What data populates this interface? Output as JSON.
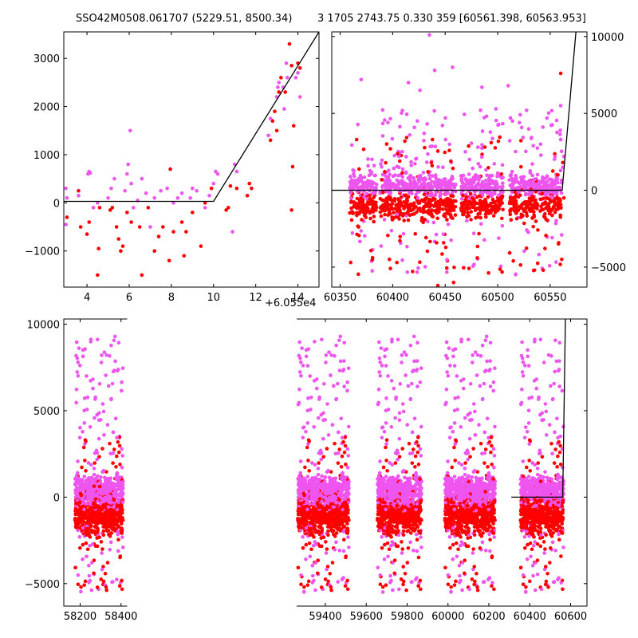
{
  "title_left": "SSO42M0508.061707 (5229.51, 8500.34)",
  "title_right": "3 1705 2743.75 0.330 359 [60561.398, 60563.953]",
  "colors": {
    "red": "#ff0000",
    "magenta": "#ee55ee",
    "line": "#000000"
  },
  "chart_data": [
    {
      "type": "scatter",
      "panel": "top-left",
      "x_offset_label": "+6.055e4",
      "xlim": [
        2.9,
        15.0
      ],
      "ylim": [
        -1750,
        3550
      ],
      "xticks": [
        4,
        6,
        8,
        10,
        12,
        14
      ],
      "yticks": [
        -1000,
        0,
        1000,
        2000,
        3000
      ],
      "ytick_labels": [
        "−1000",
        "0",
        "1000",
        "2000",
        "3000"
      ],
      "model_line": {
        "x": [
          2.9,
          10.0,
          15.0
        ],
        "y": [
          30,
          30,
          3550
        ]
      },
      "series": [
        {
          "color": "red",
          "points": [
            [
              3.05,
              -300
            ],
            [
              3.6,
              250
            ],
            [
              3.7,
              -500
            ],
            [
              4.0,
              -650
            ],
            [
              4.1,
              -400
            ],
            [
              4.5,
              -1500
            ],
            [
              4.55,
              -950
            ],
            [
              4.6,
              -100
            ],
            [
              5.1,
              -150
            ],
            [
              5.2,
              -100
            ],
            [
              5.4,
              -500
            ],
            [
              5.5,
              -750
            ],
            [
              5.6,
              -1000
            ],
            [
              5.7,
              -900
            ],
            [
              5.9,
              -200
            ],
            [
              6.1,
              -400
            ],
            [
              6.5,
              -500
            ],
            [
              6.6,
              -1500
            ],
            [
              6.9,
              -100
            ],
            [
              7.2,
              -1000
            ],
            [
              7.4,
              -700
            ],
            [
              7.6,
              -500
            ],
            [
              7.9,
              -1200
            ],
            [
              7.95,
              700
            ],
            [
              8.1,
              -600
            ],
            [
              8.5,
              -400
            ],
            [
              8.6,
              -1100
            ],
            [
              8.7,
              -600
            ],
            [
              9.0,
              -200
            ],
            [
              9.4,
              -900
            ],
            [
              9.6,
              0
            ],
            [
              9.9,
              300
            ],
            [
              10.6,
              -150
            ],
            [
              10.7,
              -100
            ],
            [
              10.8,
              350
            ],
            [
              11.1,
              300
            ],
            [
              11.6,
              150
            ],
            [
              11.7,
              400
            ],
            [
              11.8,
              300
            ],
            [
              12.7,
              1300
            ],
            [
              12.8,
              1700
            ],
            [
              12.9,
              1900
            ],
            [
              13.0,
              1500
            ],
            [
              13.1,
              2300
            ],
            [
              13.2,
              2600
            ],
            [
              13.4,
              2300
            ],
            [
              13.6,
              3300
            ],
            [
              13.7,
              2850
            ],
            [
              13.7,
              -150
            ],
            [
              13.75,
              750
            ],
            [
              13.8,
              1600
            ],
            [
              14.0,
              2900
            ],
            [
              14.1,
              2800
            ]
          ]
        },
        {
          "color": "magenta",
          "points": [
            [
              3.0,
              300
            ],
            [
              3.0,
              -450
            ],
            [
              3.05,
              100
            ],
            [
              3.6,
              150
            ],
            [
              4.05,
              600
            ],
            [
              4.1,
              650
            ],
            [
              4.15,
              620
            ],
            [
              4.3,
              -100
            ],
            [
              4.5,
              0
            ],
            [
              5.0,
              100
            ],
            [
              5.15,
              300
            ],
            [
              5.3,
              500
            ],
            [
              5.8,
              250
            ],
            [
              5.9,
              600
            ],
            [
              5.95,
              800
            ],
            [
              6.05,
              1500
            ],
            [
              6.1,
              400
            ],
            [
              6.2,
              -100
            ],
            [
              6.4,
              50
            ],
            [
              6.6,
              500
            ],
            [
              6.8,
              200
            ],
            [
              7.0,
              -500
            ],
            [
              7.2,
              100
            ],
            [
              7.5,
              250
            ],
            [
              7.8,
              300
            ],
            [
              8.1,
              0
            ],
            [
              8.3,
              100
            ],
            [
              8.5,
              200
            ],
            [
              8.9,
              100
            ],
            [
              9.0,
              300
            ],
            [
              9.2,
              250
            ],
            [
              9.6,
              -100
            ],
            [
              9.8,
              150
            ],
            [
              10.0,
              400
            ],
            [
              10.1,
              650
            ],
            [
              10.2,
              600
            ],
            [
              10.9,
              -600
            ],
            [
              11.0,
              800
            ],
            [
              11.1,
              650
            ],
            [
              12.6,
              1400
            ],
            [
              12.7,
              1750
            ],
            [
              13.0,
              2200
            ],
            [
              13.05,
              2400
            ],
            [
              13.1,
              2500
            ],
            [
              13.3,
              2400
            ],
            [
              13.35,
              1950
            ],
            [
              13.45,
              2900
            ],
            [
              13.5,
              2600
            ],
            [
              13.9,
              2600
            ],
            [
              14.0,
              2700
            ],
            [
              14.1,
              2200
            ]
          ]
        }
      ]
    },
    {
      "type": "scatter",
      "panel": "top-right",
      "xlim": [
        60342,
        60585
      ],
      "ylim": [
        -6300,
        10300
      ],
      "xticks": [
        60350,
        60400,
        60450,
        60500,
        60550
      ],
      "yticks": [
        -5000,
        0,
        5000,
        10000
      ],
      "ytick_labels": [
        "−5000",
        "0",
        "5000",
        "10000"
      ],
      "yaxis_side": "right",
      "model_line": {
        "x": [
          60342,
          60561.4,
          60574.5
        ],
        "y": [
          0,
          0,
          10300
        ]
      },
      "clusters": [
        [
          60359,
          60385
        ],
        [
          60388,
          60460
        ],
        [
          60465,
          60505
        ],
        [
          60511,
          60561
        ]
      ],
      "outliers": {
        "magenta": [
          [
            60435,
            10100
          ],
          [
            60457,
            8000
          ],
          [
            60415,
            7000
          ],
          [
            60426,
            6500
          ],
          [
            60440,
            7800
          ],
          [
            60485,
            6700
          ],
          [
            60510,
            6800
          ],
          [
            60560,
            5500
          ],
          [
            60370,
            7200
          ],
          [
            60560,
            3300
          ],
          [
            60562,
            1500
          ],
          [
            60563,
            2200
          ]
        ],
        "red": [
          [
            60560,
            7600
          ],
          [
            60535,
            -5200
          ],
          [
            60404,
            -4700
          ],
          [
            60443,
            -6200
          ],
          [
            60458,
            -6000
          ],
          [
            60561,
            -4500
          ],
          [
            60557,
            1000
          ],
          [
            60562,
            1800
          ],
          [
            60563,
            -500
          ]
        ]
      }
    },
    {
      "type": "scatter",
      "panel": "bottom",
      "xlim": [
        58120,
        60680
      ],
      "ylim": [
        -6300,
        10300
      ],
      "xticks": [
        58200,
        58400,
        59400,
        59600,
        59800,
        60000,
        60200,
        60400,
        60600
      ],
      "yticks": [
        -5000,
        0,
        5000,
        10000
      ],
      "ytick_labels": [
        "−5000",
        "0",
        "5000",
        "10000"
      ],
      "model_line": {
        "x": [
          60310,
          60561.4,
          60574.5
        ],
        "y": [
          0,
          0,
          10300
        ]
      },
      "clusters": [
        [
          58175,
          58410
        ],
        [
          59265,
          59515
        ],
        [
          59655,
          59870
        ],
        [
          59985,
          60230
        ],
        [
          60355,
          60565
        ]
      ],
      "gap_marks": [
        58430,
        59260
      ]
    }
  ]
}
